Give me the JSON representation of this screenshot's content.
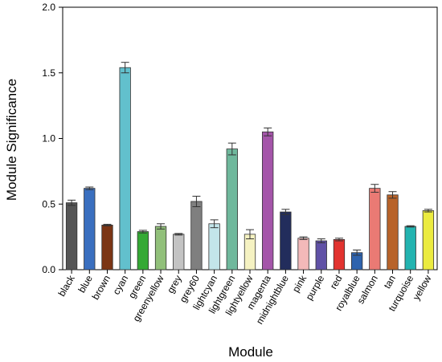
{
  "chart_data": {
    "type": "bar",
    "xlabel": "Module",
    "ylabel": "Module Significance",
    "ylim": [
      0,
      2.0
    ],
    "yticks": [
      "0.0",
      "0.5",
      "1.0",
      "1.5",
      "2.0"
    ],
    "ytick_values": [
      0,
      0.5,
      1.0,
      1.5,
      2.0
    ],
    "grid": false,
    "error_bars": true,
    "categories": [
      "black",
      "blue",
      "brown",
      "cyan",
      "green",
      "greenyellow",
      "grey",
      "grey60",
      "lightcyan",
      "lightgreen",
      "lightyellow",
      "magenta",
      "midnightblue",
      "pink",
      "purple",
      "red",
      "royalblue",
      "salmon",
      "tan",
      "turquoise",
      "yellow"
    ],
    "values": [
      0.51,
      0.62,
      0.34,
      1.54,
      0.29,
      0.33,
      0.27,
      0.52,
      0.35,
      0.92,
      0.27,
      1.05,
      0.44,
      0.24,
      0.22,
      0.23,
      0.13,
      0.62,
      0.57,
      0.33,
      0.45
    ],
    "errors": [
      0.02,
      0.01,
      0.006,
      0.04,
      0.01,
      0.02,
      0.006,
      0.04,
      0.03,
      0.045,
      0.035,
      0.03,
      0.02,
      0.01,
      0.015,
      0.01,
      0.02,
      0.03,
      0.025,
      0.005,
      0.01
    ],
    "colors": [
      "#555555",
      "#3a6fbf",
      "#7b3514",
      "#62c0cd",
      "#35a935",
      "#91c07a",
      "#c3c3c3",
      "#7f7f7f",
      "#c3e5ea",
      "#6fb89c",
      "#f5f2c2",
      "#a455a9",
      "#222d5c",
      "#f3b9b9",
      "#6051a6",
      "#e2332f",
      "#2e63ae",
      "#ea7a74",
      "#b8632a",
      "#23b3b0",
      "#ebeb40"
    ]
  }
}
